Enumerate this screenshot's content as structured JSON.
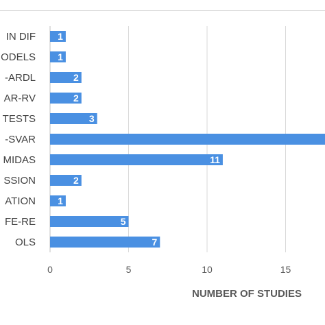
{
  "chart_data": {
    "type": "bar",
    "orientation": "horizontal",
    "categories": [
      "IN DIF",
      "ODELS",
      "-ARDL",
      "AR-RV",
      "TESTS",
      "-SVAR",
      "MIDAS",
      "SSION",
      "ATION",
      "FE-RE",
      "OLS"
    ],
    "values": [
      1,
      1,
      2,
      2,
      3,
      18,
      11,
      2,
      1,
      5,
      7
    ],
    "data_labels": [
      "1",
      "1",
      "2",
      "2",
      "3",
      "",
      "11",
      "2",
      "1",
      "5",
      "7"
    ],
    "xlabel": "NUMBER OF STUDIES",
    "ylabel": "",
    "title": "",
    "xlim": [
      0,
      17.5
    ],
    "xticks": [
      0,
      5,
      10,
      15
    ],
    "grid": true,
    "bar_color": "#4a90e2"
  }
}
